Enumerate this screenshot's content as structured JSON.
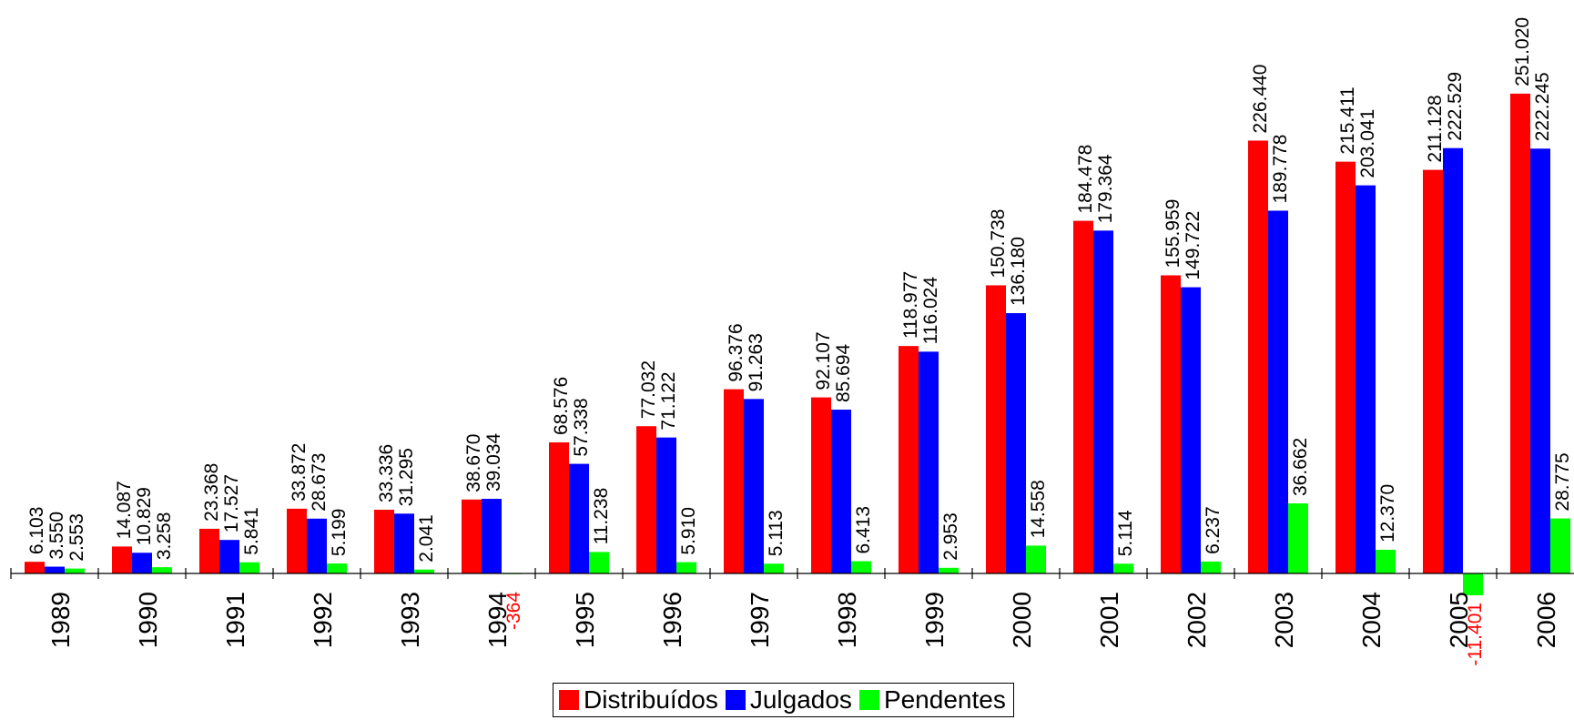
{
  "chart_data": {
    "type": "bar",
    "categories": [
      "1989",
      "1990",
      "1991",
      "1992",
      "1993",
      "1994",
      "1995",
      "1996",
      "1997",
      "1998",
      "1999",
      "2000",
      "2001",
      "2002",
      "2003",
      "2004",
      "2005",
      "2006"
    ],
    "series": [
      {
        "name": "Distribuídos",
        "color": "#ff0000",
        "values": [
          6103,
          14087,
          23368,
          33872,
          33336,
          38670,
          68576,
          77032,
          96376,
          92107,
          118977,
          150738,
          184478,
          155959,
          226440,
          215411,
          211128,
          251020
        ],
        "labels": [
          "6.103",
          "14.087",
          "23.368",
          "33.872",
          "33.336",
          "38.670",
          "68.576",
          "77.032",
          "96.376",
          "92.107",
          "118.977",
          "150.738",
          "184.478",
          "155.959",
          "226.440",
          "215.411",
          "211.128",
          "251.020"
        ]
      },
      {
        "name": "Julgados",
        "color": "#0000ff",
        "values": [
          3550,
          10829,
          17527,
          28673,
          31295,
          39034,
          57338,
          71122,
          91263,
          85694,
          116024,
          136180,
          179364,
          149722,
          189778,
          203041,
          222529,
          222245
        ],
        "labels": [
          "3.550",
          "10.829",
          "17.527",
          "28.673",
          "31.295",
          "39.034",
          "57.338",
          "71.122",
          "91.263",
          "85.694",
          "116.024",
          "136.180",
          "179.364",
          "149.722",
          "189.778",
          "203.041",
          "222.529",
          "222.245"
        ]
      },
      {
        "name": "Pendentes",
        "color": "#00ff00",
        "values": [
          2553,
          3258,
          5841,
          5199,
          2041,
          -364,
          11238,
          5910,
          5113,
          6413,
          2953,
          14558,
          5114,
          6237,
          36662,
          12370,
          -11401,
          28775
        ],
        "labels": [
          "2.553",
          "3.258",
          "5.841",
          "5.199",
          "2.041",
          "-364",
          "11.238",
          "5.910",
          "5.113",
          "6.413",
          "2.953",
          "14.558",
          "5.114",
          "6.237",
          "36.662",
          "12.370",
          "-11.401",
          "28.775"
        ]
      }
    ],
    "negative_label_color": "#ff0000",
    "grid": false,
    "legend": {
      "position": "bottom-center"
    }
  }
}
